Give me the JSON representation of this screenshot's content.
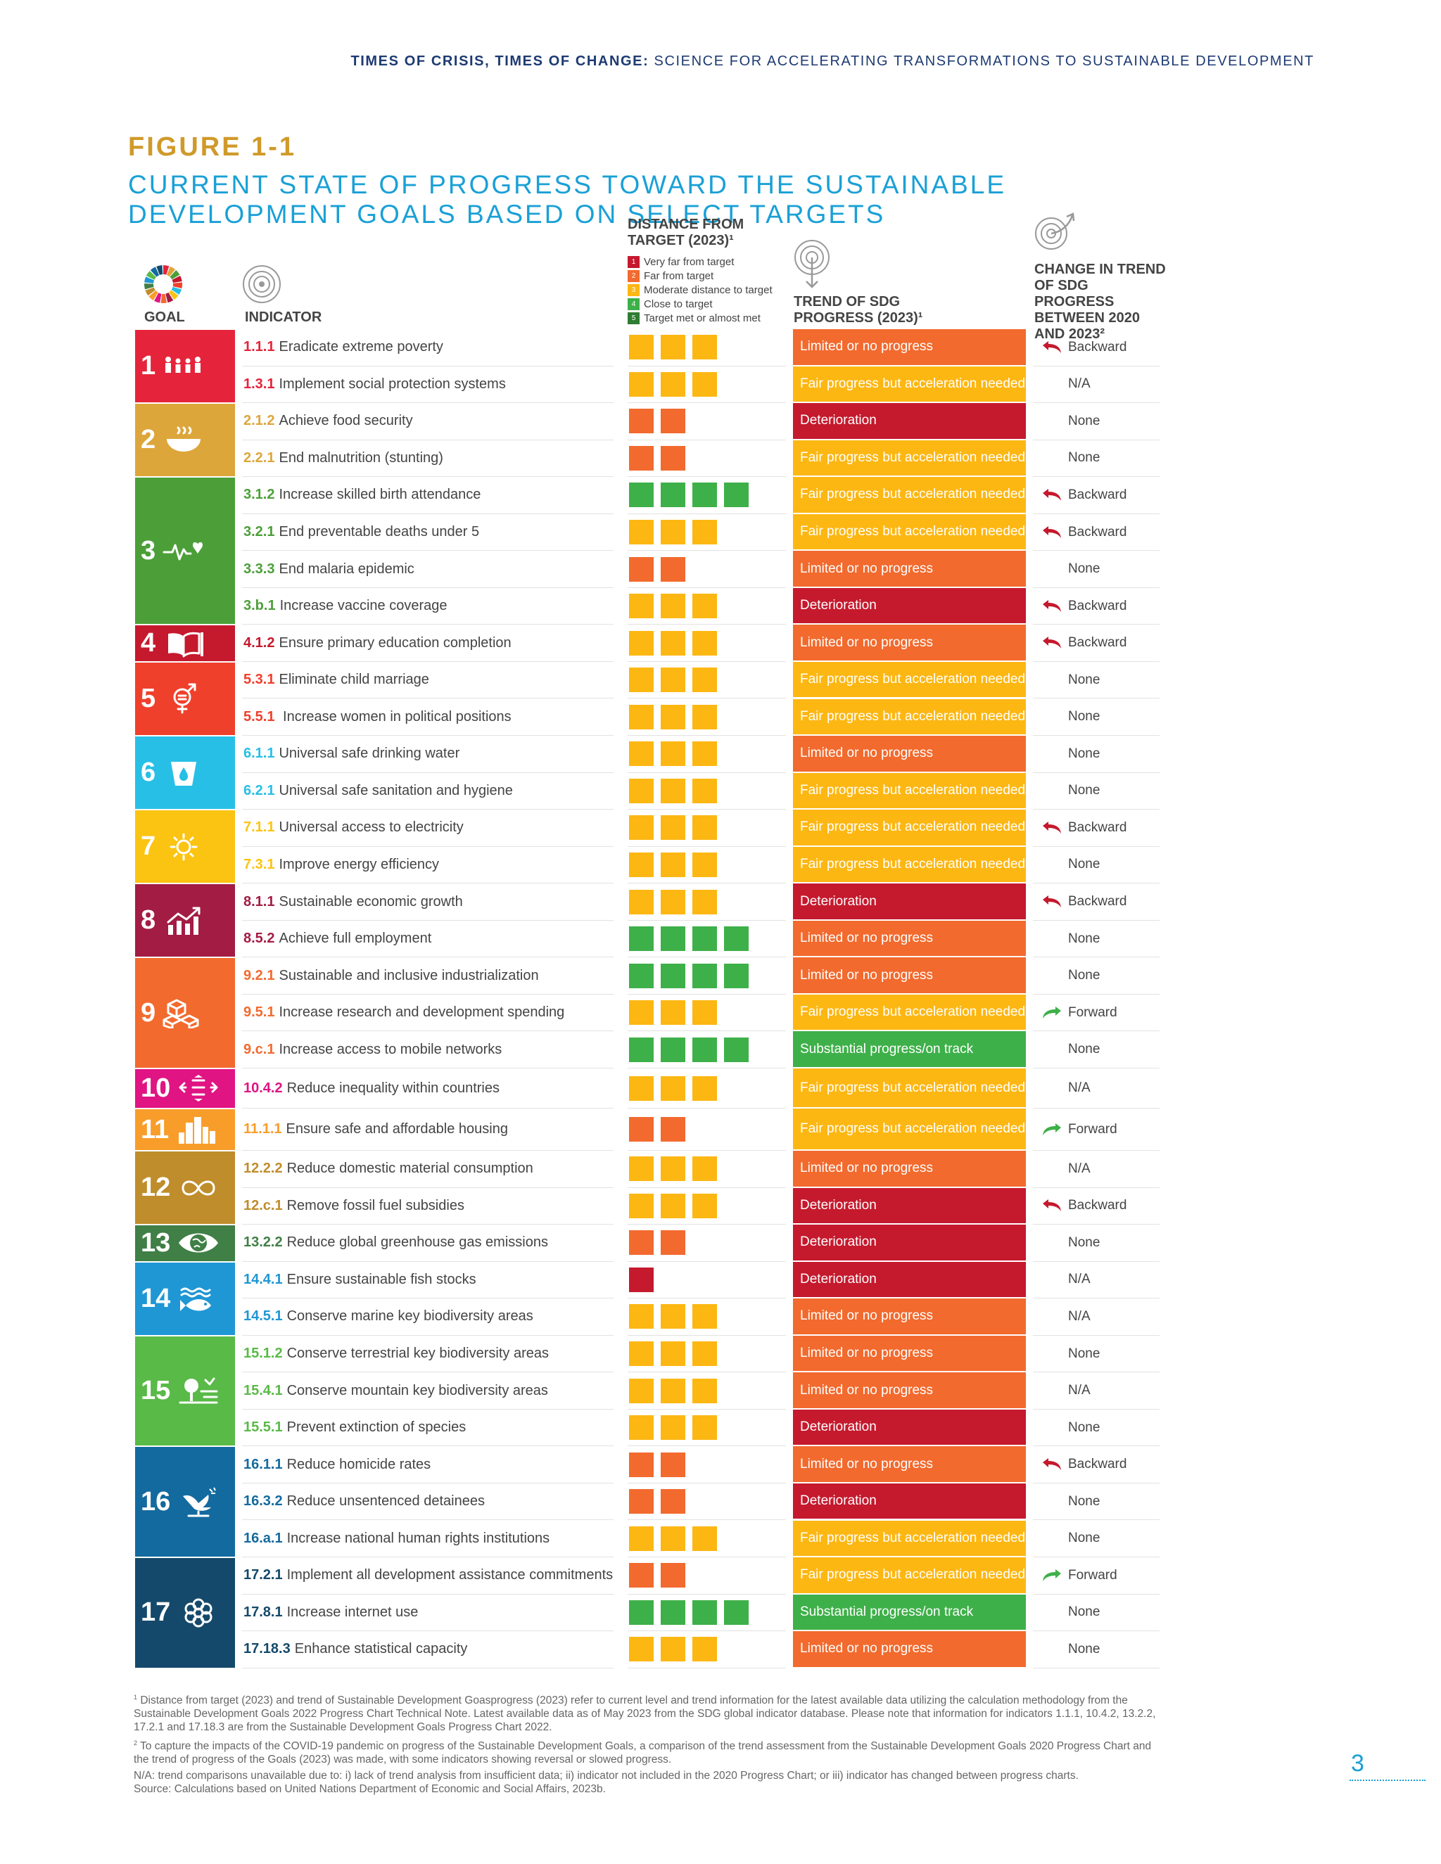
{
  "header": {
    "bold": "TIMES OF CRISIS, TIMES OF CHANGE:",
    "rest": " SCIENCE FOR ACCELERATING TRANSFORMATIONS TO SUSTAINABLE DEVELOPMENT"
  },
  "figure": {
    "label": "FIGURE 1-1",
    "title": "CURRENT STATE OF PROGRESS TOWARD THE SUSTAINABLE DEVELOPMENT GOALS BASED ON SELECT TARGETS"
  },
  "columns": {
    "goal": "GOAL",
    "indicator": "INDICATOR",
    "distance": "DISTANCE FROM TARGET (2023)¹",
    "trend": "TREND OF SDG PROGRESS (2023)¹",
    "change": "CHANGE IN TREND OF SDG PROGRESS BETWEEN 2020 AND 2023²"
  },
  "legend": [
    {
      "num": "1",
      "label": "Very far from target",
      "color": "#c5192d"
    },
    {
      "num": "2",
      "label": "Far from target",
      "color": "#f26a2e"
    },
    {
      "num": "3",
      "label": "Moderate distance to target",
      "color": "#fdb713"
    },
    {
      "num": "4",
      "label": "Close to target",
      "color": "#3eb049"
    },
    {
      "num": "5",
      "label": "Target met or almost met",
      "color": "#2e7d32"
    }
  ],
  "distance_colors": {
    "1": "#c5192d",
    "2": "#f26a2e",
    "3": "#fdb713",
    "4": "#3eb049"
  },
  "trend_colors": {
    "Limited or no progress": "#f26a2e",
    "Fair progress but acceleration needed": "#fdb713",
    "Deterioration": "#c5192d",
    "Substantial progress/on track": "#3eb049"
  },
  "change_colors": {
    "Backward": "#c5192d",
    "Forward": "#3eb049"
  },
  "goals": [
    {
      "num": "1",
      "color": "#e5243b",
      "icon": "family-icon",
      "rows": [
        {
          "code": "1.1.1",
          "text": "Eradicate extreme poverty",
          "dist": 3,
          "trend": "Limited or no progress",
          "change": "Backward"
        },
        {
          "code": "1.3.1",
          "text": "Implement social protection systems",
          "dist": 3,
          "trend": "Fair progress but acceleration needed",
          "change": "N/A"
        }
      ]
    },
    {
      "num": "2",
      "color": "#dda63a",
      "icon": "bowl-icon",
      "rows": [
        {
          "code": "2.1.2",
          "text": "Achieve food security",
          "dist": 2,
          "trend": "Deterioration",
          "change": "None"
        },
        {
          "code": "2.2.1",
          "text": "End malnutrition (stunting)",
          "dist": 2,
          "trend": "Fair progress but acceleration needed",
          "change": "None"
        }
      ]
    },
    {
      "num": "3",
      "color": "#4c9f38",
      "icon": "heartbeat-icon",
      "rows": [
        {
          "code": "3.1.2",
          "text": "Increase skilled birth attendance",
          "dist": 4,
          "trend": "Fair progress but acceleration needed",
          "change": "Backward"
        },
        {
          "code": "3.2.1",
          "text": "End preventable deaths under 5",
          "dist": 3,
          "trend": "Fair progress but acceleration needed",
          "change": "Backward"
        },
        {
          "code": "3.3.3",
          "text": "End malaria epidemic",
          "dist": 2,
          "trend": "Limited or no progress",
          "change": "None"
        },
        {
          "code": "3.b.1",
          "text": "Increase vaccine coverage",
          "dist": 3,
          "trend": "Deterioration",
          "change": "Backward"
        }
      ]
    },
    {
      "num": "4",
      "color": "#c5192d",
      "icon": "book-icon",
      "rows": [
        {
          "code": "4.1.2",
          "text": "Ensure primary education completion",
          "dist": 3,
          "trend": "Limited or no progress",
          "change": "Backward"
        }
      ]
    },
    {
      "num": "5",
      "color": "#ef402b",
      "icon": "gender-icon",
      "rows": [
        {
          "code": "5.3.1",
          "text": "Eliminate child marriage",
          "dist": 3,
          "trend": "Fair progress but acceleration needed",
          "change": "None"
        },
        {
          "code": "5.5.1",
          "text": " Increase women in political positions",
          "dist": 3,
          "trend": "Fair progress but acceleration needed",
          "change": "None"
        }
      ]
    },
    {
      "num": "6",
      "color": "#27bfe6",
      "icon": "water-icon",
      "rows": [
        {
          "code": "6.1.1",
          "text": "Universal safe drinking water",
          "dist": 3,
          "trend": "Limited or no progress",
          "change": "None"
        },
        {
          "code": "6.2.1",
          "text": "Universal safe sanitation and hygiene",
          "dist": 3,
          "trend": "Fair progress but acceleration needed",
          "change": "None"
        }
      ]
    },
    {
      "num": "7",
      "color": "#fbc412",
      "icon": "sun-icon",
      "rows": [
        {
          "code": "7.1.1",
          "text": "Universal access to electricity",
          "dist": 3,
          "trend": "Fair progress but acceleration needed",
          "change": "Backward"
        },
        {
          "code": "7.3.1",
          "text": "Improve energy efficiency",
          "dist": 3,
          "trend": "Fair progress but acceleration needed",
          "change": "None"
        }
      ]
    },
    {
      "num": "8",
      "color": "#a31c44",
      "icon": "growth-chart-icon",
      "rows": [
        {
          "code": "8.1.1",
          "text": "Sustainable economic growth",
          "dist": 3,
          "trend": "Deterioration",
          "change": "Backward"
        },
        {
          "code": "8.5.2",
          "text": "Achieve full employment",
          "dist": 4,
          "trend": "Limited or no progress",
          "change": "None"
        }
      ]
    },
    {
      "num": "9",
      "color": "#f26a2e",
      "icon": "cubes-icon",
      "rows": [
        {
          "code": "9.2.1",
          "text": "Sustainable and inclusive industrialization",
          "dist": 4,
          "trend": "Limited or no progress",
          "change": "None"
        },
        {
          "code": "9.5.1",
          "text": "Increase research and development spending",
          "dist": 3,
          "trend": "Fair progress but acceleration needed",
          "change": "Forward"
        },
        {
          "code": "9.c.1",
          "text": "Increase access to mobile networks",
          "dist": 4,
          "trend": "Substantial progress/on track",
          "change": "None"
        }
      ]
    },
    {
      "num": "10",
      "color": "#e01483",
      "icon": "equality-icon",
      "rows": [
        {
          "code": "10.4.2",
          "text": "Reduce inequality within countries",
          "dist": 3,
          "trend": "Fair progress but acceleration needed",
          "change": "N/A"
        }
      ]
    },
    {
      "num": "11",
      "color": "#f89d2a",
      "icon": "city-icon",
      "rows": [
        {
          "code": "11.1.1",
          "text": "Ensure safe and affordable housing",
          "dist": 2,
          "trend": "Fair progress but acceleration needed",
          "change": "Forward"
        }
      ]
    },
    {
      "num": "12",
      "color": "#bf8d2c",
      "icon": "infinity-icon",
      "rows": [
        {
          "code": "12.2.2",
          "text": "Reduce domestic material consumption",
          "dist": 3,
          "trend": "Limited or no progress",
          "change": "N/A"
        },
        {
          "code": "12.c.1",
          "text": "Remove fossil fuel subsidies",
          "dist": 3,
          "trend": "Deterioration",
          "change": "Backward"
        }
      ]
    },
    {
      "num": "13",
      "color": "#407f46",
      "icon": "eye-globe-icon",
      "rows": [
        {
          "code": "13.2.2",
          "text": "Reduce global greenhouse gas emissions",
          "dist": 2,
          "trend": "Deterioration",
          "change": "None"
        }
      ]
    },
    {
      "num": "14",
      "color": "#1f97d4",
      "icon": "fish-icon",
      "rows": [
        {
          "code": "14.4.1",
          "text": "Ensure sustainable fish stocks",
          "dist": 1,
          "trend": "Deterioration",
          "change": "N/A"
        },
        {
          "code": "14.5.1",
          "text": "Conserve marine key biodiversity areas",
          "dist": 3,
          "trend": "Limited or no progress",
          "change": "N/A"
        }
      ]
    },
    {
      "num": "15",
      "color": "#59ba47",
      "icon": "tree-icon",
      "rows": [
        {
          "code": "15.1.2",
          "text": "Conserve terrestrial key biodiversity areas",
          "dist": 3,
          "trend": "Limited or no progress",
          "change": "None"
        },
        {
          "code": "15.4.1",
          "text": "Conserve mountain key biodiversity areas",
          "dist": 3,
          "trend": "Limited or no progress",
          "change": "N/A"
        },
        {
          "code": "15.5.1",
          "text": "Prevent extinction of species",
          "dist": 3,
          "trend": "Deterioration",
          "change": "None"
        }
      ]
    },
    {
      "num": "16",
      "color": "#136a9f",
      "icon": "dove-icon",
      "rows": [
        {
          "code": "16.1.1",
          "text": "Reduce homicide rates",
          "dist": 2,
          "trend": "Limited or no progress",
          "change": "Backward"
        },
        {
          "code": "16.3.2",
          "text": "Reduce unsentenced detainees",
          "dist": 2,
          "trend": "Deterioration",
          "change": "None"
        },
        {
          "code": "16.a.1",
          "text": "Increase national human rights institutions",
          "dist": 3,
          "trend": "Fair progress but acceleration needed",
          "change": "None"
        }
      ]
    },
    {
      "num": "17",
      "color": "#14496b",
      "icon": "flower-icon",
      "rows": [
        {
          "code": "17.2.1",
          "text": "Implement all development assistance commitments",
          "dist": 2,
          "trend": "Fair progress but acceleration needed",
          "change": "Forward"
        },
        {
          "code": "17.8.1",
          "text": "Increase internet use",
          "dist": 4,
          "trend": "Substantial progress/on track",
          "change": "None"
        },
        {
          "code": "17.18.3",
          "text": "Enhance statistical capacity",
          "dist": 3,
          "trend": "Limited or no progress",
          "change": "None"
        }
      ]
    }
  ],
  "notes": {
    "n1": "Distance from target (2023) and trend of Sustainable Development Goasprogress (2023) refer to current level and trend information for the latest available data utilizing the calculation methodology from the Sustainable Development Goals 2022 Progress Chart Technical Note. Latest available data as of May 2023 from the SDG global indicator database. Please note that information for indicators 1.1.1, 10.4.2, 13.2.2, 17.2.1 and 17.18.3 are from the Sustainable Development Goals Progress Chart 2022.",
    "n2": "To capture the impacts of the COVID-19 pandemic on progress of the Sustainable Development Goals, a comparison of the trend assessment from the Sustainable Development Goals 2020 Progress Chart and the trend of progress of the Goals (2023) was made, with some indicators showing reversal or slowed progress.",
    "na": "N/A: trend comparisons unavailable due to: i) lack of trend analysis from insufficient data; ii) indicator not included in the 2020 Progress Chart; or iii) indicator has changed between progress charts.",
    "source": "Source: Calculations based on United Nations Department of Economic and Social Affairs, 2023b."
  },
  "page_number": "3"
}
